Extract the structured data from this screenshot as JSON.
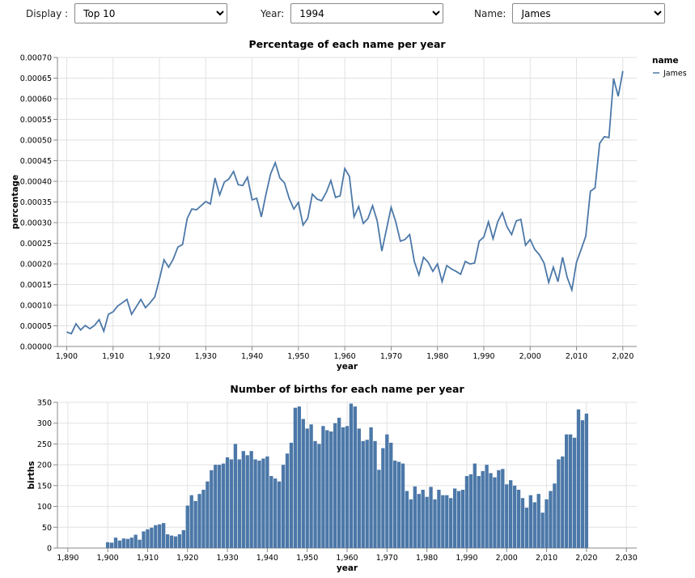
{
  "controls": [
    {
      "label": "Display :",
      "value": "Top 10"
    },
    {
      "label": "Year:",
      "value": "1994"
    },
    {
      "label": "Name:",
      "value": "James"
    }
  ],
  "chart_data": [
    {
      "type": "line",
      "title": "Percentage of each name per year",
      "x_label": "year",
      "y_label": "percentage",
      "legend_title": "name",
      "grid": true,
      "x": [
        1900,
        1901,
        1902,
        1903,
        1904,
        1905,
        1906,
        1907,
        1908,
        1909,
        1910,
        1911,
        1912,
        1913,
        1914,
        1915,
        1916,
        1917,
        1918,
        1919,
        1920,
        1921,
        1922,
        1923,
        1924,
        1925,
        1926,
        1927,
        1928,
        1929,
        1930,
        1931,
        1932,
        1933,
        1934,
        1935,
        1936,
        1937,
        1938,
        1939,
        1940,
        1941,
        1942,
        1943,
        1944,
        1945,
        1946,
        1947,
        1948,
        1949,
        1950,
        1951,
        1952,
        1953,
        1954,
        1955,
        1956,
        1957,
        1958,
        1959,
        1960,
        1961,
        1962,
        1963,
        1964,
        1965,
        1966,
        1967,
        1968,
        1969,
        1970,
        1971,
        1972,
        1973,
        1974,
        1975,
        1976,
        1977,
        1978,
        1979,
        1980,
        1981,
        1982,
        1983,
        1984,
        1985,
        1986,
        1987,
        1988,
        1989,
        1990,
        1991,
        1992,
        1993,
        1994,
        1995,
        1996,
        1997,
        1998,
        1999,
        2000,
        2001,
        2002,
        2003,
        2004,
        2005,
        2006,
        2007,
        2008,
        2009,
        2010,
        2011,
        2012,
        2013,
        2014,
        2015,
        2016,
        2017,
        2018,
        2019,
        2020
      ],
      "series": [
        {
          "name": "James",
          "color": "#4c78a8",
          "values": [
            3.5e-05,
            3.1e-05,
            5.5e-05,
            4e-05,
            5.1e-05,
            4.3e-05,
            5.1e-05,
            6.5e-05,
            3.7e-05,
            7.8e-05,
            8.4e-05,
            9.8e-05,
            0.000106,
            0.000114,
            7.8e-05,
            9.6e-05,
            0.000114,
            9.4e-05,
            0.000106,
            0.00012,
            0.000163,
            0.00021,
            0.000192,
            0.000212,
            0.000241,
            0.000247,
            0.00031,
            0.000333,
            0.000331,
            0.000341,
            0.000351,
            0.000345,
            0.000408,
            0.000367,
            0.000398,
            0.000406,
            0.000424,
            0.000392,
            0.00039,
            0.00041,
            0.000355,
            0.000359,
            0.000314,
            0.000369,
            0.000418,
            0.000445,
            0.000408,
            0.000396,
            0.000359,
            0.000333,
            0.000349,
            0.000294,
            0.00031,
            0.000369,
            0.000357,
            0.000353,
            0.000373,
            0.000402,
            0.000361,
            0.000365,
            0.000431,
            0.000412,
            0.000314,
            0.000339,
            0.000298,
            0.00031,
            0.000341,
            0.000304,
            0.000231,
            0.000284,
            0.000337,
            0.000302,
            0.000255,
            0.000259,
            0.000271,
            0.000206,
            0.000173,
            0.000216,
            0.000204,
            0.000182,
            0.0002,
            0.000157,
            0.000196,
            0.000188,
            0.000182,
            0.000175,
            0.000206,
            0.0002,
            0.000202,
            0.000255,
            0.000265,
            0.000302,
            0.000261,
            0.000302,
            0.000324,
            0.00029,
            0.000271,
            0.000304,
            0.000308,
            0.000245,
            0.000259,
            0.000235,
            0.000222,
            0.000202,
            0.000155,
            0.000192,
            0.000157,
            0.000216,
            0.000167,
            0.000137,
            0.000204,
            0.000235,
            0.000267,
            0.000376,
            0.000384,
            0.000492,
            0.000508,
            0.000506,
            0.000649,
            0.000606,
            0.000667
          ]
        }
      ],
      "xlim": [
        1898,
        2023
      ],
      "xticks": [
        {
          "value": 1900,
          "label": "1,900"
        },
        {
          "value": 1910,
          "label": "1,910"
        },
        {
          "value": 1920,
          "label": "1,920"
        },
        {
          "value": 1930,
          "label": "1,930"
        },
        {
          "value": 1940,
          "label": "1,940"
        },
        {
          "value": 1950,
          "label": "1,950"
        },
        {
          "value": 1960,
          "label": "1,960"
        },
        {
          "value": 1970,
          "label": "1,970"
        },
        {
          "value": 1980,
          "label": "1,980"
        },
        {
          "value": 1990,
          "label": "1,990"
        },
        {
          "value": 2000,
          "label": "2,000"
        },
        {
          "value": 2010,
          "label": "2,010"
        },
        {
          "value": 2020,
          "label": "2,020"
        }
      ],
      "ylim": [
        0,
        0.0007
      ],
      "yticks": [
        {
          "value": 0,
          "label": "0.00000"
        },
        {
          "value": 5e-05,
          "label": "0.00005"
        },
        {
          "value": 0.0001,
          "label": "0.00010"
        },
        {
          "value": 0.00015,
          "label": "0.00015"
        },
        {
          "value": 0.0002,
          "label": "0.00020"
        },
        {
          "value": 0.00025,
          "label": "0.00025"
        },
        {
          "value": 0.0003,
          "label": "0.00030"
        },
        {
          "value": 0.00035,
          "label": "0.00035"
        },
        {
          "value": 0.0004,
          "label": "0.00040"
        },
        {
          "value": 0.00045,
          "label": "0.00045"
        },
        {
          "value": 0.0005,
          "label": "0.00050"
        },
        {
          "value": 0.00055,
          "label": "0.00055"
        },
        {
          "value": 0.0006,
          "label": "0.00060"
        },
        {
          "value": 0.00065,
          "label": "0.00065"
        },
        {
          "value": 0.0007,
          "label": "0.00070"
        }
      ]
    },
    {
      "type": "bar",
      "title": "Number of births for each name per year",
      "x_label": "year",
      "y_label": "births",
      "grid": true,
      "color": "#4c78a8",
      "x": [
        1900,
        1901,
        1902,
        1903,
        1904,
        1905,
        1906,
        1907,
        1908,
        1909,
        1910,
        1911,
        1912,
        1913,
        1914,
        1915,
        1916,
        1917,
        1918,
        1919,
        1920,
        1921,
        1922,
        1923,
        1924,
        1925,
        1926,
        1927,
        1928,
        1929,
        1930,
        1931,
        1932,
        1933,
        1934,
        1935,
        1936,
        1937,
        1938,
        1939,
        1940,
        1941,
        1942,
        1943,
        1944,
        1945,
        1946,
        1947,
        1948,
        1949,
        1950,
        1951,
        1952,
        1953,
        1954,
        1955,
        1956,
        1957,
        1958,
        1959,
        1960,
        1961,
        1962,
        1963,
        1964,
        1965,
        1966,
        1967,
        1968,
        1969,
        1970,
        1971,
        1972,
        1973,
        1974,
        1975,
        1976,
        1977,
        1978,
        1979,
        1980,
        1981,
        1982,
        1983,
        1984,
        1985,
        1986,
        1987,
        1988,
        1989,
        1990,
        1991,
        1992,
        1993,
        1994,
        1995,
        1996,
        1997,
        1998,
        1999,
        2000,
        2001,
        2002,
        2003,
        2004,
        2005,
        2006,
        2007,
        2008,
        2009,
        2010,
        2011,
        2012,
        2013,
        2014,
        2015,
        2016,
        2017,
        2018,
        2019,
        2020
      ],
      "values": [
        14,
        13,
        25,
        18,
        23,
        22,
        25,
        32,
        20,
        40,
        45,
        49,
        55,
        57,
        60,
        33,
        30,
        28,
        33,
        43,
        102,
        127,
        113,
        130,
        140,
        160,
        187,
        200,
        200,
        203,
        218,
        213,
        250,
        213,
        233,
        223,
        233,
        213,
        210,
        215,
        220,
        173,
        167,
        160,
        200,
        227,
        253,
        337,
        340,
        310,
        287,
        297,
        257,
        250,
        293,
        283,
        280,
        300,
        313,
        290,
        293,
        347,
        340,
        287,
        257,
        260,
        290,
        257,
        188,
        240,
        273,
        253,
        210,
        207,
        203,
        137,
        117,
        148,
        130,
        140,
        123,
        147,
        117,
        140,
        127,
        127,
        120,
        143,
        137,
        140,
        173,
        177,
        203,
        173,
        185,
        200,
        180,
        170,
        187,
        190,
        153,
        163,
        150,
        140,
        120,
        97,
        127,
        110,
        130,
        85,
        117,
        137,
        155,
        213,
        220,
        273,
        273,
        265,
        333,
        307,
        323
      ],
      "xlim": [
        1887.4,
        2032.6
      ],
      "xticks": [
        {
          "value": 1890,
          "label": "1,890"
        },
        {
          "value": 1900,
          "label": "1,900"
        },
        {
          "value": 1910,
          "label": "1,910"
        },
        {
          "value": 1920,
          "label": "1,920"
        },
        {
          "value": 1930,
          "label": "1,930"
        },
        {
          "value": 1940,
          "label": "1,940"
        },
        {
          "value": 1950,
          "label": "1,950"
        },
        {
          "value": 1960,
          "label": "1,960"
        },
        {
          "value": 1970,
          "label": "1,970"
        },
        {
          "value": 1980,
          "label": "1,980"
        },
        {
          "value": 1990,
          "label": "1,990"
        },
        {
          "value": 2000,
          "label": "2,000"
        },
        {
          "value": 2010,
          "label": "2,010"
        },
        {
          "value": 2020,
          "label": "2,020"
        },
        {
          "value": 2030,
          "label": "2,030"
        }
      ],
      "ylim": [
        0,
        350
      ],
      "yticks": [
        0,
        50,
        100,
        150,
        200,
        250,
        300,
        350
      ]
    }
  ]
}
